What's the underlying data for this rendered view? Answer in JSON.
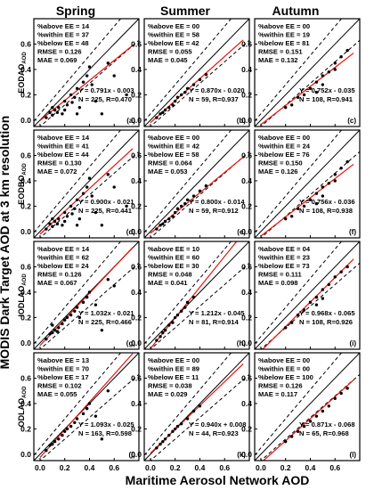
{
  "figure": {
    "x_axis_title": "Maritime Aerosol Network AOD",
    "y_axis_title": "MODIS Dark Target AOD at 3 km resolution",
    "columns": [
      "Spring",
      "Summer",
      "Autumn"
    ],
    "rows": [
      {
        "main": "EODAO",
        "sub": "AOD"
      },
      {
        "main": "EODBO",
        "sub": "AOD"
      },
      {
        "main": "IODLAO",
        "sub": "AOD"
      },
      {
        "main": "ODLAO",
        "sub": "AOD"
      }
    ]
  },
  "chart_data": [
    {
      "id": "a",
      "row": 0,
      "col": 0,
      "type": "scatter",
      "stats": [
        "%above EE = 14",
        "%within EE = 37",
        "%below EE = 48",
        "RMSE = 0.126",
        "MAE = 0.069"
      ],
      "regression": [
        "Y = 0.791x - 0.003",
        "N = 225, R=0.470"
      ],
      "slope": 0.791,
      "intercept": -0.003,
      "points": [
        [
          0.05,
          0.02
        ],
        [
          0.08,
          0.06
        ],
        [
          0.1,
          0.04
        ],
        [
          0.12,
          0.08
        ],
        [
          0.15,
          0.1
        ],
        [
          0.18,
          0.05
        ],
        [
          0.2,
          0.15
        ],
        [
          0.22,
          0.12
        ],
        [
          0.25,
          0.2
        ],
        [
          0.28,
          0.18
        ],
        [
          0.3,
          0.25
        ],
        [
          0.32,
          0.1
        ],
        [
          0.35,
          0.3
        ],
        [
          0.38,
          0.35
        ],
        [
          0.4,
          0.42
        ],
        [
          0.42,
          0.28
        ],
        [
          0.45,
          0.15
        ],
        [
          0.5,
          0.05
        ],
        [
          0.55,
          0.45
        ],
        [
          0.6,
          0.35
        ],
        [
          0.7,
          0.2
        ],
        [
          0.1,
          0.1
        ],
        [
          0.14,
          0.06
        ],
        [
          0.2,
          0.08
        ],
        [
          0.26,
          0.14
        ],
        [
          0.3,
          0.05
        ]
      ]
    },
    {
      "id": "b",
      "row": 0,
      "col": 1,
      "type": "scatter",
      "stats": [
        "%above EE = 00",
        "%within EE = 58",
        "%below EE = 42",
        "RMSE = 0.055",
        "MAE = 0.045"
      ],
      "regression": [
        "Y = 0.870x - 0.020",
        "N = 59, R=0.937"
      ],
      "slope": 0.87,
      "intercept": -0.02,
      "points": [
        [
          0.05,
          0.02
        ],
        [
          0.08,
          0.05
        ],
        [
          0.1,
          0.06
        ],
        [
          0.12,
          0.08
        ],
        [
          0.15,
          0.1
        ],
        [
          0.18,
          0.12
        ],
        [
          0.2,
          0.15
        ],
        [
          0.22,
          0.18
        ],
        [
          0.25,
          0.2
        ],
        [
          0.28,
          0.22
        ],
        [
          0.3,
          0.25
        ],
        [
          0.35,
          0.28
        ],
        [
          0.4,
          0.32
        ],
        [
          0.45,
          0.36
        ]
      ]
    },
    {
      "id": "c",
      "row": 0,
      "col": 2,
      "type": "scatter",
      "stats": [
        "%above EE = 00",
        "%within EE = 19",
        "%below EE = 81",
        "RMSE = 0.151",
        "MAE = 0.132"
      ],
      "regression": [
        "Y = 0.752x - 0.035",
        "N = 108, R=0.941"
      ],
      "slope": 0.752,
      "intercept": -0.035,
      "points": [
        [
          0.2,
          0.1
        ],
        [
          0.25,
          0.12
        ],
        [
          0.3,
          0.18
        ],
        [
          0.35,
          0.2
        ],
        [
          0.4,
          0.25
        ],
        [
          0.45,
          0.3
        ],
        [
          0.5,
          0.35
        ],
        [
          0.55,
          0.38
        ],
        [
          0.6,
          0.45
        ],
        [
          0.65,
          0.5
        ],
        [
          0.7,
          0.55
        ],
        [
          0.5,
          0.28
        ],
        [
          0.45,
          0.22
        ],
        [
          0.6,
          0.4
        ]
      ]
    },
    {
      "id": "d",
      "row": 1,
      "col": 0,
      "type": "scatter",
      "stats": [
        "%above EE = 14",
        "%within EE = 41",
        "%below EE = 44",
        "RMSE = 0.130",
        "MAE = 0.072"
      ],
      "regression": [
        "Y = 0.900x - 0.021",
        "N = 225, R=0.441"
      ],
      "slope": 0.9,
      "intercept": -0.021,
      "points": [
        [
          0.05,
          0.02
        ],
        [
          0.08,
          0.06
        ],
        [
          0.1,
          0.04
        ],
        [
          0.12,
          0.08
        ],
        [
          0.15,
          0.1
        ],
        [
          0.18,
          0.05
        ],
        [
          0.2,
          0.15
        ],
        [
          0.22,
          0.12
        ],
        [
          0.25,
          0.2
        ],
        [
          0.28,
          0.18
        ],
        [
          0.3,
          0.25
        ],
        [
          0.32,
          0.1
        ],
        [
          0.35,
          0.3
        ],
        [
          0.38,
          0.35
        ],
        [
          0.4,
          0.42
        ],
        [
          0.42,
          0.28
        ],
        [
          0.45,
          0.15
        ],
        [
          0.5,
          0.05
        ],
        [
          0.55,
          0.45
        ],
        [
          0.6,
          0.35
        ],
        [
          0.7,
          0.2
        ],
        [
          0.1,
          0.1
        ],
        [
          0.14,
          0.06
        ],
        [
          0.2,
          0.08
        ],
        [
          0.26,
          0.14
        ],
        [
          0.3,
          0.05
        ]
      ]
    },
    {
      "id": "e",
      "row": 1,
      "col": 1,
      "type": "scatter",
      "stats": [
        "%above EE = 00",
        "%within EE = 42",
        "%below EE = 58",
        "RMSE = 0.064",
        "MAE = 0.053"
      ],
      "regression": [
        "Y = 0.800x - 0.014",
        "N = 59, R=0.912"
      ],
      "slope": 0.8,
      "intercept": -0.014,
      "points": [
        [
          0.05,
          0.02
        ],
        [
          0.08,
          0.05
        ],
        [
          0.1,
          0.06
        ],
        [
          0.12,
          0.08
        ],
        [
          0.15,
          0.1
        ],
        [
          0.18,
          0.12
        ],
        [
          0.2,
          0.15
        ],
        [
          0.22,
          0.18
        ],
        [
          0.25,
          0.2
        ],
        [
          0.28,
          0.22
        ],
        [
          0.3,
          0.25
        ],
        [
          0.35,
          0.28
        ],
        [
          0.4,
          0.32
        ],
        [
          0.45,
          0.36
        ]
      ]
    },
    {
      "id": "f",
      "row": 1,
      "col": 2,
      "type": "scatter",
      "stats": [
        "%above EE = 00",
        "%within EE = 24",
        "%below EE = 76",
        "RMSE = 0.150",
        "MAE = 0.126"
      ],
      "regression": [
        "Y = 0.756x - 0.036",
        "N = 108, R=0.938"
      ],
      "slope": 0.756,
      "intercept": -0.036,
      "points": [
        [
          0.2,
          0.1
        ],
        [
          0.25,
          0.12
        ],
        [
          0.3,
          0.18
        ],
        [
          0.35,
          0.2
        ],
        [
          0.4,
          0.25
        ],
        [
          0.45,
          0.3
        ],
        [
          0.5,
          0.35
        ],
        [
          0.55,
          0.38
        ],
        [
          0.6,
          0.45
        ],
        [
          0.65,
          0.5
        ],
        [
          0.7,
          0.55
        ],
        [
          0.5,
          0.28
        ],
        [
          0.45,
          0.22
        ],
        [
          0.6,
          0.4
        ]
      ]
    },
    {
      "id": "g",
      "row": 2,
      "col": 0,
      "type": "scatter",
      "stats": [
        "%above EE = 14",
        "%within EE = 62",
        "%below EE = 24",
        "RMSE = 0.126",
        "MAE = 0.067"
      ],
      "regression": [
        "Y = 1.032x - 0.021",
        "N = 225, R=0.466"
      ],
      "slope": 1.032,
      "intercept": -0.021,
      "points": [
        [
          0.05,
          0.03
        ],
        [
          0.08,
          0.07
        ],
        [
          0.1,
          0.08
        ],
        [
          0.12,
          0.1
        ],
        [
          0.15,
          0.12
        ],
        [
          0.18,
          0.15
        ],
        [
          0.2,
          0.18
        ],
        [
          0.22,
          0.2
        ],
        [
          0.25,
          0.22
        ],
        [
          0.28,
          0.25
        ],
        [
          0.3,
          0.28
        ],
        [
          0.32,
          0.2
        ],
        [
          0.35,
          0.32
        ],
        [
          0.38,
          0.36
        ],
        [
          0.4,
          0.4
        ],
        [
          0.45,
          0.3
        ],
        [
          0.5,
          0.1
        ],
        [
          0.55,
          0.5
        ],
        [
          0.6,
          0.45
        ],
        [
          0.1,
          0.14
        ],
        [
          0.14,
          0.09
        ]
      ]
    },
    {
      "id": "h",
      "row": 2,
      "col": 1,
      "type": "scatter",
      "stats": [
        "%above EE = 10",
        "%within EE = 60",
        "%below EE = 30",
        "RMSE = 0.048",
        "MAE = 0.041"
      ],
      "regression": [
        "Y = 1.212x - 0.045",
        "N = 81, R=0.914"
      ],
      "slope": 1.212,
      "intercept": -0.045,
      "points": [
        [
          0.05,
          0.02
        ],
        [
          0.08,
          0.05
        ],
        [
          0.1,
          0.08
        ],
        [
          0.12,
          0.1
        ],
        [
          0.15,
          0.14
        ],
        [
          0.18,
          0.16
        ],
        [
          0.2,
          0.2
        ],
        [
          0.22,
          0.22
        ],
        [
          0.25,
          0.25
        ],
        [
          0.28,
          0.28
        ],
        [
          0.3,
          0.32
        ],
        [
          0.35,
          0.36
        ]
      ]
    },
    {
      "id": "i",
      "row": 2,
      "col": 2,
      "type": "scatter",
      "stats": [
        "%above EE = 04",
        "%within EE = 23",
        "%below EE = 73",
        "RMSE = 0.111",
        "MAE = 0.098"
      ],
      "regression": [
        "Y = 0.968x - 0.065",
        "N = 108, R=0.926"
      ],
      "slope": 0.968,
      "intercept": -0.065,
      "points": [
        [
          0.2,
          0.12
        ],
        [
          0.25,
          0.16
        ],
        [
          0.3,
          0.22
        ],
        [
          0.35,
          0.26
        ],
        [
          0.4,
          0.32
        ],
        [
          0.45,
          0.36
        ],
        [
          0.5,
          0.42
        ],
        [
          0.55,
          0.46
        ],
        [
          0.6,
          0.52
        ],
        [
          0.65,
          0.56
        ],
        [
          0.7,
          0.6
        ],
        [
          0.5,
          0.35
        ],
        [
          0.45,
          0.3
        ]
      ]
    },
    {
      "id": "j",
      "row": 3,
      "col": 0,
      "type": "scatter",
      "stats": [
        "%above EE = 13",
        "%within EE = 70",
        "%below EE = 17",
        "RMSE = 0.102",
        "MAE = 0.055"
      ],
      "regression": [
        "Y = 1.093x - 0.025",
        "N = 163, R=0.598"
      ],
      "slope": 1.093,
      "intercept": -0.025,
      "points": [
        [
          0.05,
          0.03
        ],
        [
          0.08,
          0.07
        ],
        [
          0.1,
          0.08
        ],
        [
          0.12,
          0.1
        ],
        [
          0.15,
          0.12
        ],
        [
          0.18,
          0.15
        ],
        [
          0.2,
          0.18
        ],
        [
          0.22,
          0.2
        ],
        [
          0.25,
          0.22
        ],
        [
          0.28,
          0.25
        ],
        [
          0.3,
          0.28
        ],
        [
          0.35,
          0.32
        ],
        [
          0.38,
          0.36
        ],
        [
          0.4,
          0.4
        ],
        [
          0.45,
          0.3
        ],
        [
          0.5,
          0.12
        ],
        [
          0.55,
          0.5
        ]
      ]
    },
    {
      "id": "k",
      "row": 3,
      "col": 1,
      "type": "scatter",
      "stats": [
        "%above EE = 00",
        "%within EE = 89",
        "%below EE = 11",
        "RMSE = 0.038",
        "MAE = 0.029"
      ],
      "regression": [
        "Y = 0.940x + 0.008",
        "N = 44, R=0.923"
      ],
      "slope": 0.94,
      "intercept": 0.008,
      "points": [
        [
          0.05,
          0.05
        ],
        [
          0.08,
          0.08
        ],
        [
          0.1,
          0.1
        ],
        [
          0.12,
          0.12
        ],
        [
          0.15,
          0.15
        ],
        [
          0.18,
          0.18
        ],
        [
          0.2,
          0.2
        ],
        [
          0.22,
          0.22
        ],
        [
          0.25,
          0.24
        ],
        [
          0.3,
          0.28
        ],
        [
          0.35,
          0.34
        ],
        [
          0.4,
          0.38
        ]
      ]
    },
    {
      "id": "l",
      "row": 3,
      "col": 2,
      "type": "scatter",
      "stats": [
        "%above EE = 00",
        "%within EE = 00",
        "%below EE = 100",
        "RMSE = 0.126",
        "MAE = 0.117"
      ],
      "regression": [
        "Y = 0.871x - 0.068",
        "N = 65, R=0.968"
      ],
      "slope": 0.871,
      "intercept": -0.068,
      "points": [
        [
          0.2,
          0.1
        ],
        [
          0.25,
          0.14
        ],
        [
          0.3,
          0.18
        ],
        [
          0.35,
          0.22
        ],
        [
          0.4,
          0.26
        ],
        [
          0.45,
          0.3
        ],
        [
          0.5,
          0.34
        ],
        [
          0.55,
          0.38
        ],
        [
          0.6,
          0.44
        ],
        [
          0.65,
          0.48
        ],
        [
          0.7,
          0.52
        ]
      ]
    }
  ],
  "axes": {
    "xlim": [
      -0.05,
      0.8
    ],
    "ylim": [
      -0.05,
      0.8
    ],
    "x_ticks": [
      "0.0",
      "0.2",
      "0.4",
      "0.6"
    ],
    "y_ticks": [
      "0.0",
      "0.2",
      "0.4",
      "0.6"
    ]
  },
  "colors": {
    "fit": "#e8120c",
    "one_to_one": "#000000",
    "envelope": "#000000",
    "points": "#000000"
  }
}
